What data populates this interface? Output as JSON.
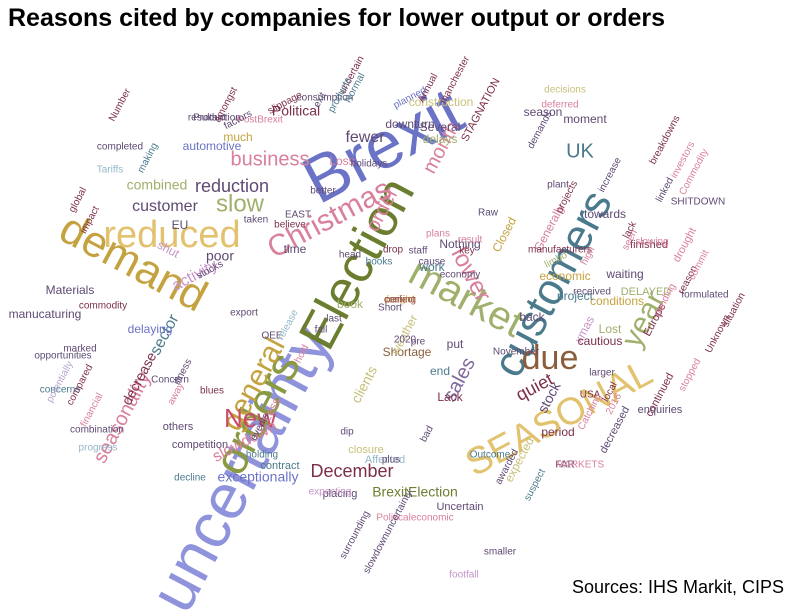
{
  "title": "Reasons cited by companies for lower output or orders",
  "source": "Sources: IHS Markit, CIPS",
  "words": [
    "Brexit",
    "uncertainty",
    "Election",
    "orders",
    "customers",
    "demand",
    "market",
    "reduced",
    "SEASONAL",
    "due",
    "general",
    "Christmas",
    "year",
    "New",
    "slow",
    "lower",
    "sales",
    "business",
    "December",
    "month",
    "order",
    "UK",
    "reduction",
    "seasonality",
    "quiet",
    "fewer",
    "slowdown",
    "sector",
    "activity",
    "customer",
    "BrexitElection",
    "Political",
    "combined",
    "clients",
    "poor",
    "exceptionally",
    "decrease",
    "automotive",
    "delaying",
    "stock",
    "Lost",
    "conditions",
    "much",
    "construction",
    "downturn",
    "xmas",
    "period",
    "expected",
    "end",
    "waiting",
    "Less",
    "Lack",
    "Shortage",
    "weather",
    "back",
    "put",
    "cautious",
    "economic",
    "Generally",
    "towards",
    "Closed",
    "Loss",
    "EU",
    "time",
    "shut",
    "Nothing",
    "work",
    "book",
    "Materials",
    "manucaturing",
    "Several",
    "delays",
    "season",
    "moment",
    "project",
    "Uncertain",
    "Affected",
    "placing",
    "competition",
    "others",
    "contract",
    "expecting",
    "closure",
    "Europe",
    "enquiries",
    "decreased",
    "continued",
    "finished",
    "drought",
    "DELAYED",
    "STAGNATION",
    "SHITDOWN",
    "concerns",
    "opportunities",
    "combination",
    "progress",
    "decline",
    "potentially",
    "Tariffs",
    "completed",
    "Production",
    "PostBrexit",
    "consumption",
    "slippage",
    "Normal",
    "planned",
    "manchester",
    "Annual",
    "deferred",
    "decisions",
    "breakdowns",
    "increase",
    "investors",
    "Commodity",
    "FAR",
    "USA",
    "2016",
    "2020",
    "MARKETS",
    "Catching",
    "smaller",
    "footfall",
    "Politicaleconomic",
    "slowdownuncertainty",
    "surrounding",
    "suspect",
    "awarded",
    "Outcome",
    "November",
    "larger",
    "local",
    "seen",
    "linked",
    "pending",
    "formulated",
    "Unknown",
    "situation",
    "reason",
    "commit",
    "received",
    "manufacturers",
    "high",
    "limbo",
    "Raw",
    "projects",
    "plant",
    "books",
    "Short",
    "key",
    "plans",
    "staff",
    "drop",
    "export",
    "OEE",
    "release",
    "hold",
    "last",
    "fall",
    "pre",
    "dip",
    "bad",
    "illness",
    "away",
    "blues",
    "events",
    "holding",
    "resultant",
    "uncertain",
    "Number",
    "factors",
    "amongst",
    "EAST",
    "better",
    "believe",
    "taken",
    "exit",
    "products",
    "holidays",
    "marked",
    "plus",
    "Concern",
    "stocks",
    "impact",
    "making",
    "global",
    "financial",
    "commodity",
    "compared",
    "head",
    "economy",
    "cause",
    "result",
    "demands",
    "lack",
    "slowing",
    "stopped",
    "freight",
    "perfect",
    "coming"
  ],
  "palette": [
    "#6b73c7",
    "#8f93dc",
    "#6b7d2e",
    "#8a9a43",
    "#b5a4cf",
    "#c792c8",
    "#c4a23f",
    "#e2c26e",
    "#8b5d3a",
    "#a35a5a",
    "#c84b6a",
    "#d9809c",
    "#7c2f4b",
    "#5e4a73",
    "#4a7a8c",
    "#93b8c9",
    "#9fb06c",
    "#d9a27a",
    "#b06a2b",
    "#7f6a9e",
    "#c7c07a"
  ]
}
